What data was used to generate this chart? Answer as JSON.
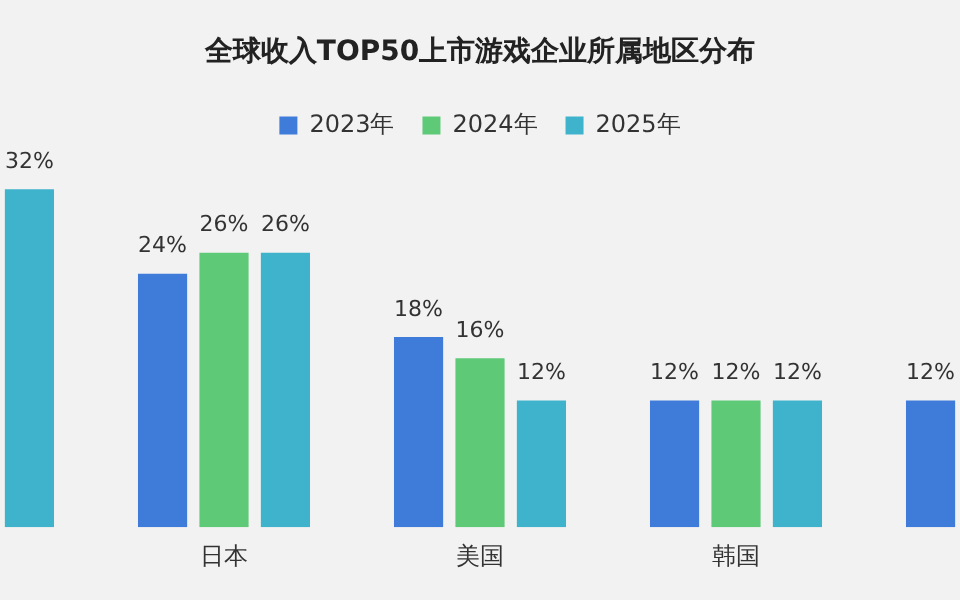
{
  "chart_data": {
    "type": "bar",
    "title": "全球收入TOP50上市游戏企业所属地区分布",
    "categories": [
      null,
      "日本",
      "美国",
      "韩国",
      null
    ],
    "series": [
      {
        "name": "2023年",
        "color": "#3f7bd9",
        "values": [
          null,
          24,
          18,
          12,
          12
        ],
        "value_labels": [
          null,
          "24%",
          "18%",
          "12%",
          "12%"
        ]
      },
      {
        "name": "2024年",
        "color": "#5ec977",
        "values": [
          null,
          26,
          16,
          12,
          null
        ],
        "value_labels": [
          null,
          "26%",
          "16%",
          "12%",
          null
        ]
      },
      {
        "name": "2025年",
        "color": "#3fb3cc",
        "values": [
          32,
          26,
          12,
          12,
          null
        ],
        "value_labels": [
          "32%",
          "26%",
          "12%",
          "12%",
          null
        ]
      }
    ],
    "legend": "top",
    "grid": false
  }
}
